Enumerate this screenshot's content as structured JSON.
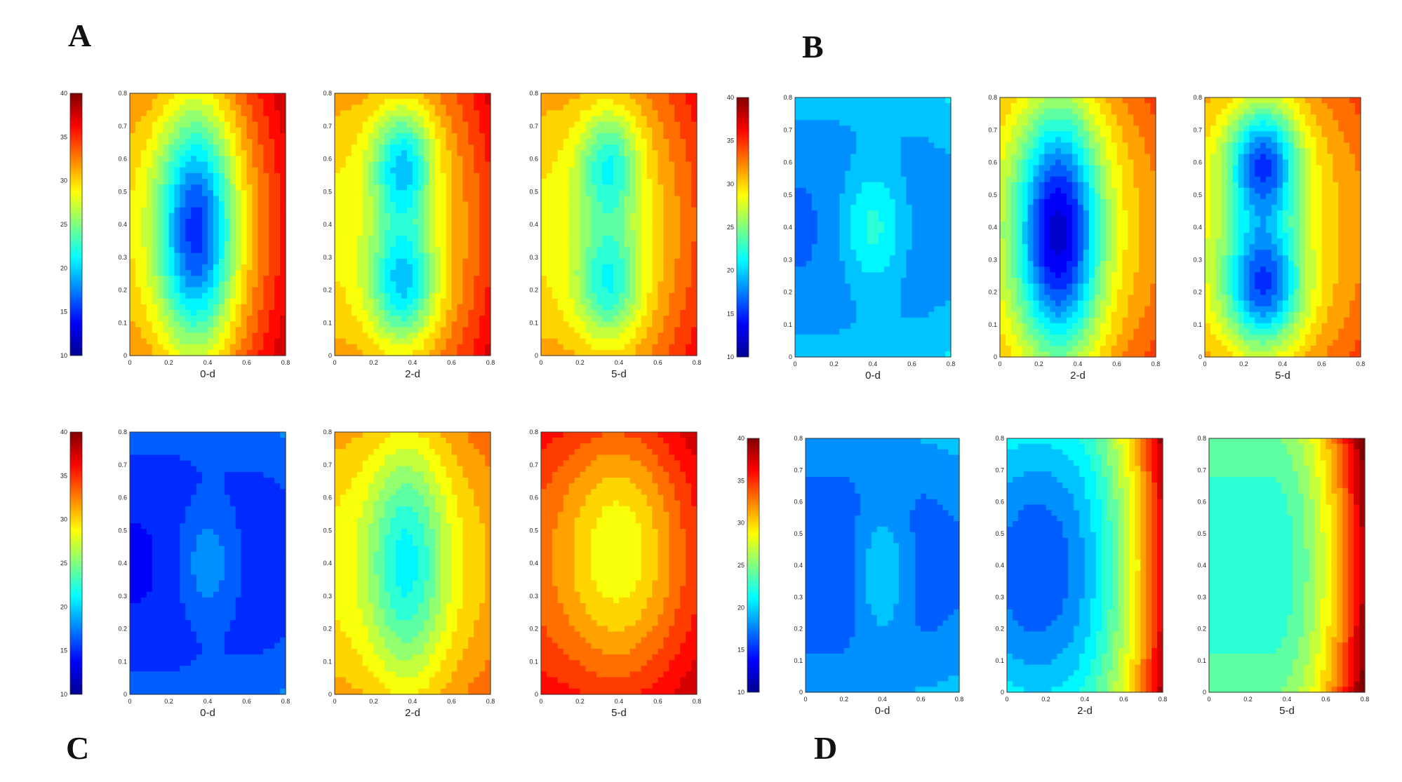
{
  "panel_letters": [
    "A",
    "B",
    "C",
    "D"
  ],
  "colors": {
    "colormap": [
      "#00008f",
      "#0000ff",
      "#0080ff",
      "#00ffff",
      "#80ff80",
      "#ffff00",
      "#ff8000",
      "#ff0000",
      "#800000"
    ]
  },
  "chart_data": [
    {
      "panel": "A",
      "type": "heatmap",
      "colorbar": {
        "ticks": [
          10,
          15,
          20,
          25,
          30,
          35,
          40
        ],
        "range": [
          10,
          40
        ]
      },
      "plots": [
        {
          "label": "0-d",
          "xticks": [
            0,
            0.2,
            0.4,
            0.6,
            0.8
          ],
          "yticks": [
            0,
            0.1,
            0.2,
            0.3,
            0.4,
            0.5,
            0.6,
            0.7,
            0.8
          ],
          "xlim": [
            0,
            0.8
          ],
          "ylim": [
            0,
            0.8
          ],
          "base": 30,
          "right_boost": 6,
          "blobs": [
            {
              "x": 0.34,
              "y": 0.38,
              "sx": 0.14,
              "sy": 0.26,
              "a": -15
            }
          ]
        },
        {
          "label": "2-d",
          "xticks": [
            0,
            0.2,
            0.4,
            0.6,
            0.8
          ],
          "yticks": [
            0,
            0.1,
            0.2,
            0.3,
            0.4,
            0.5,
            0.6,
            0.7,
            0.8
          ],
          "xlim": [
            0,
            0.8
          ],
          "ylim": [
            0,
            0.8
          ],
          "base": 29,
          "right_boost": 6,
          "blobs": [
            {
              "x": 0.35,
              "y": 0.58,
              "sx": 0.11,
              "sy": 0.12,
              "a": -10
            },
            {
              "x": 0.35,
              "y": 0.22,
              "sx": 0.12,
              "sy": 0.13,
              "a": -10
            }
          ]
        },
        {
          "label": "5-d",
          "xticks": [
            0,
            0.2,
            0.4,
            0.6,
            0.8
          ],
          "yticks": [
            0,
            0.1,
            0.2,
            0.3,
            0.4,
            0.5,
            0.6,
            0.7,
            0.8
          ],
          "xlim": [
            0,
            0.8
          ],
          "ylim": [
            0,
            0.8
          ],
          "base": 29,
          "right_boost": 5,
          "blobs": [
            {
              "x": 0.35,
              "y": 0.58,
              "sx": 0.11,
              "sy": 0.12,
              "a": -8
            },
            {
              "x": 0.35,
              "y": 0.22,
              "sx": 0.12,
              "sy": 0.13,
              "a": -8
            }
          ]
        }
      ]
    },
    {
      "panel": "B",
      "type": "heatmap",
      "colorbar": {
        "ticks": [
          10,
          15,
          20,
          25,
          30,
          35,
          40
        ],
        "range": [
          10,
          40
        ]
      },
      "plots": [
        {
          "label": "0-d",
          "xticks": [
            0,
            0.2,
            0.4,
            0.6,
            0.8
          ],
          "yticks": [
            0,
            0.1,
            0.2,
            0.3,
            0.4,
            0.5,
            0.6,
            0.7,
            0.8
          ],
          "xlim": [
            0,
            0.8
          ],
          "ylim": [
            0,
            0.8
          ],
          "base": 17,
          "right_boost": 1,
          "blobs": [
            {
              "x": 0.4,
              "y": 0.4,
              "sx": 0.12,
              "sy": 0.14,
              "a": 5
            }
          ]
        },
        {
          "label": "2-d",
          "xticks": [
            0,
            0.2,
            0.4,
            0.6,
            0.8
          ],
          "yticks": [
            0,
            0.1,
            0.2,
            0.3,
            0.4,
            0.5,
            0.6,
            0.7,
            0.8
          ],
          "xlim": [
            0,
            0.8
          ],
          "ylim": [
            0,
            0.8
          ],
          "base": 29,
          "right_boost": 3,
          "blobs": [
            {
              "x": 0.3,
              "y": 0.38,
              "sx": 0.15,
              "sy": 0.28,
              "a": -17
            }
          ]
        },
        {
          "label": "5-d",
          "xticks": [
            0,
            0.2,
            0.4,
            0.6,
            0.8
          ],
          "yticks": [
            0,
            0.1,
            0.2,
            0.3,
            0.4,
            0.5,
            0.6,
            0.7,
            0.8
          ],
          "xlim": [
            0,
            0.8
          ],
          "ylim": [
            0,
            0.8
          ],
          "base": 29,
          "right_boost": 3,
          "blobs": [
            {
              "x": 0.3,
              "y": 0.6,
              "sx": 0.13,
              "sy": 0.13,
              "a": -14
            },
            {
              "x": 0.3,
              "y": 0.22,
              "sx": 0.14,
              "sy": 0.14,
              "a": -14
            }
          ]
        }
      ]
    },
    {
      "panel": "C",
      "type": "heatmap",
      "colorbar": {
        "ticks": [
          10,
          15,
          20,
          25,
          30,
          35,
          40
        ],
        "range": [
          10,
          40
        ]
      },
      "plots": [
        {
          "label": "0-d",
          "xticks": [
            0,
            0.2,
            0.4,
            0.6,
            0.8
          ],
          "yticks": [
            0,
            0.1,
            0.2,
            0.3,
            0.4,
            0.5,
            0.6,
            0.7,
            0.8
          ],
          "xlim": [
            0,
            0.8
          ],
          "ylim": [
            0,
            0.8
          ],
          "base": 14,
          "right_boost": 1,
          "blobs": [
            {
              "x": 0.4,
              "y": 0.4,
              "sx": 0.12,
              "sy": 0.14,
              "a": 4
            }
          ]
        },
        {
          "label": "2-d",
          "xticks": [
            0,
            0.2,
            0.4,
            0.6,
            0.8
          ],
          "yticks": [
            0,
            0.1,
            0.2,
            0.3,
            0.4,
            0.5,
            0.6,
            0.7,
            0.8
          ],
          "xlim": [
            0,
            0.8
          ],
          "ylim": [
            0,
            0.8
          ],
          "base": 29,
          "right_boost": 2,
          "blobs": [
            {
              "x": 0.37,
              "y": 0.4,
              "sx": 0.14,
              "sy": 0.26,
              "a": -8
            }
          ]
        },
        {
          "label": "5-d",
          "xticks": [
            0,
            0.2,
            0.4,
            0.6,
            0.8
          ],
          "yticks": [
            0,
            0.1,
            0.2,
            0.3,
            0.4,
            0.5,
            0.6,
            0.7,
            0.8
          ],
          "xlim": [
            0,
            0.8
          ],
          "ylim": [
            0,
            0.8
          ],
          "base": 34,
          "right_boost": 2,
          "blobs": [
            {
              "x": 0.4,
              "y": 0.45,
              "sx": 0.22,
              "sy": 0.28,
              "a": -6
            }
          ]
        }
      ]
    },
    {
      "panel": "D",
      "type": "heatmap",
      "colorbar": {
        "ticks": [
          10,
          15,
          20,
          25,
          30,
          35,
          40
        ],
        "range": [
          10,
          40
        ]
      },
      "plots": [
        {
          "label": "0-d",
          "xticks": [
            0,
            0.2,
            0.4,
            0.6,
            0.8
          ],
          "yticks": [
            0,
            0.1,
            0.2,
            0.3,
            0.4,
            0.5,
            0.6,
            0.7,
            0.8
          ],
          "xlim": [
            0,
            0.8
          ],
          "ylim": [
            0,
            0.8
          ],
          "base": 16,
          "right_boost": 1,
          "blobs": [
            {
              "x": 0.4,
              "y": 0.38,
              "sx": 0.1,
              "sy": 0.15,
              "a": 4
            }
          ]
        },
        {
          "label": "2-d",
          "xticks": [
            0,
            0.2,
            0.4,
            0.6,
            0.8
          ],
          "yticks": [
            0,
            0.1,
            0.2,
            0.3,
            0.4,
            0.5,
            0.6,
            0.7,
            0.8
          ],
          "xlim": [
            0,
            0.8
          ],
          "ylim": [
            0,
            0.8
          ],
          "base": 20,
          "right_boost": 17,
          "blobs": [
            {
              "x": 0.15,
              "y": 0.38,
              "sx": 0.2,
              "sy": 0.35,
              "a": -4
            }
          ]
        },
        {
          "label": "5-d",
          "xticks": [
            0,
            0.2,
            0.4,
            0.6,
            0.8
          ],
          "yticks": [
            0,
            0.1,
            0.2,
            0.3,
            0.4,
            0.5,
            0.6,
            0.7,
            0.8
          ],
          "xlim": [
            0,
            0.8
          ],
          "ylim": [
            0,
            0.8
          ],
          "base": 22,
          "right_boost": 17,
          "blobs": []
        }
      ]
    }
  ]
}
